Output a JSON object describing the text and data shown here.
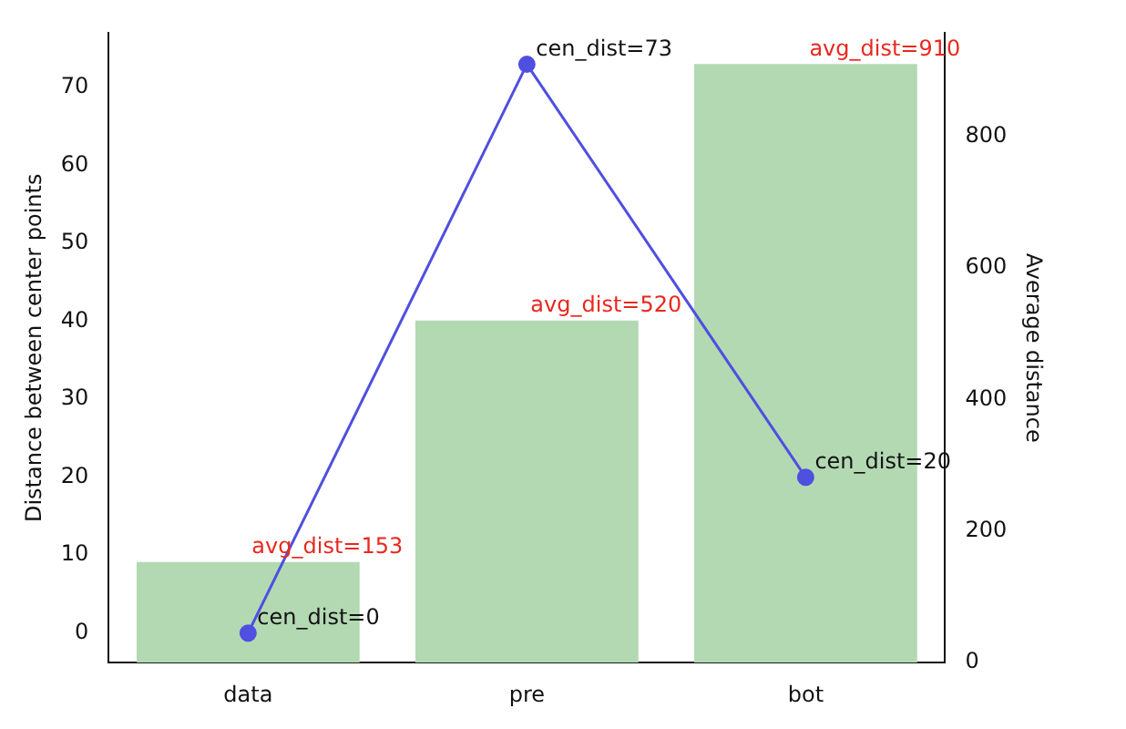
{
  "chart_data": {
    "type": "bar",
    "categories": [
      "data",
      "pre",
      "bot"
    ],
    "ylabel": "Distance between center points",
    "y2label": "Average distance",
    "ylim": [
      -3.8,
      77
    ],
    "yticks": [
      0,
      10,
      20,
      30,
      40,
      50,
      60,
      70
    ],
    "y2lim": [
      0,
      957
    ],
    "y2ticks": [
      0,
      200,
      400,
      600,
      800
    ],
    "series": [
      {
        "axis": "y2",
        "color": "#b3d9b3",
        "values": [
          153,
          520,
          910
        ],
        "value_labels": [
          "avg_dist=153",
          "avg_dist=520",
          "avg_dist=910"
        ]
      },
      {
        "type": "line",
        "color": "#4f4fe0",
        "marker": "circle",
        "values": [
          0,
          73,
          20
        ],
        "value_labels": [
          "cen_dist=0",
          "cen_dist=73",
          "cen_dist=20"
        ]
      }
    ],
    "grid": false,
    "legend": false
  }
}
